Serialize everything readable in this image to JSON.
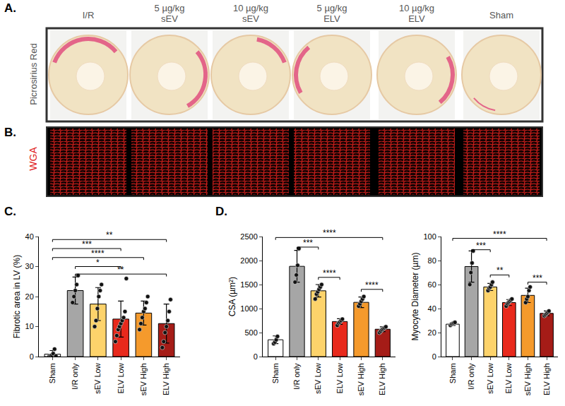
{
  "figure": {
    "A": {
      "label": "A.",
      "row_label": "Picrosirius Red",
      "columns": [
        [
          "I/R"
        ],
        [
          "5 µg/kg",
          "sEV"
        ],
        [
          "10 µg/kg",
          "sEV"
        ],
        [
          "5 µg/kg",
          "ELV"
        ],
        [
          "10 µg/kg",
          "ELV"
        ],
        [
          "Sham"
        ]
      ]
    },
    "B": {
      "label": "B.",
      "row_label": "WGA"
    },
    "C": {
      "label": "C."
    },
    "D": {
      "label": "D."
    }
  },
  "chart_data": [
    {
      "type": "bar",
      "ylabel": "Fibrotic area in LV (%)",
      "categories": [
        "Sham",
        "I/R only",
        "sEV Low",
        "ELV Low",
        "sEV High",
        "ELV High"
      ],
      "values": [
        0.8,
        22,
        17.5,
        12.5,
        14.5,
        11
      ],
      "errors": [
        1.2,
        4.5,
        5.5,
        6,
        4,
        6.5
      ],
      "points": [
        [
          0,
          0.3,
          0.5,
          1,
          2.5,
          0.2
        ],
        [
          18,
          20,
          22,
          24,
          27
        ],
        [
          10,
          12,
          16,
          20,
          22,
          24
        ],
        [
          5,
          7,
          9,
          10,
          11,
          12,
          13,
          15,
          26
        ],
        [
          9,
          11,
          13,
          15,
          16,
          18,
          20
        ],
        [
          3,
          5,
          8,
          10,
          12,
          15,
          19
        ]
      ],
      "colors": [
        "#ffffff",
        "#a6a6a6",
        "#fdd36b",
        "#e8291c",
        "#f59a2c",
        "#a51c17"
      ],
      "ylim": [
        0,
        40
      ],
      "yticks": [
        0,
        10,
        20,
        30,
        40
      ],
      "grid": false,
      "comparisons": [
        {
          "from": 0,
          "to": 5,
          "y": 39,
          "label": "**"
        },
        {
          "from": 0,
          "to": 3,
          "y": 36,
          "label": "***"
        },
        {
          "from": 0,
          "to": 4,
          "y": 33,
          "label": "****"
        },
        {
          "from": 1,
          "to": 3,
          "y": 30,
          "label": "*"
        },
        {
          "from": 1,
          "to": 5,
          "y": 27.5,
          "label": "**"
        }
      ]
    },
    {
      "type": "bar",
      "ylabel": "CSA (µm²)",
      "categories": [
        "Sham",
        "I/R only",
        "sEV Low",
        "ELV Low",
        "sEV High",
        "ELV High"
      ],
      "values": [
        350,
        1880,
        1370,
        730,
        1130,
        570
      ],
      "errors": [
        80,
        330,
        130,
        60,
        110,
        50
      ],
      "points": [
        [
          270,
          300,
          350,
          420
        ],
        [
          1550,
          1700,
          1900,
          2250
        ],
        [
          1200,
          1300,
          1350,
          1400,
          1450,
          1500
        ],
        [
          650,
          700,
          720,
          750,
          780
        ],
        [
          1050,
          1100,
          1150,
          1200,
          1250
        ],
        [
          500,
          530,
          560,
          580,
          600,
          620
        ]
      ],
      "colors": [
        "#ffffff",
        "#a6a6a6",
        "#fdd36b",
        "#e8291c",
        "#f59a2c",
        "#a51c17"
      ],
      "ylim": [
        0,
        2500
      ],
      "yticks": [
        0,
        500,
        1000,
        1500,
        2000,
        2500
      ],
      "grid": false,
      "comparisons": [
        {
          "from": 0,
          "to": 5,
          "y": 2480,
          "label": "****"
        },
        {
          "from": 1,
          "to": 2,
          "y": 2280,
          "label": "***"
        },
        {
          "from": 2,
          "to": 3,
          "y": 1650,
          "label": "****"
        },
        {
          "from": 4,
          "to": 5,
          "y": 1400,
          "label": "****"
        }
      ]
    },
    {
      "type": "bar",
      "ylabel": "Myocyte Diameter (µm)",
      "categories": [
        "Sham",
        "I/R only",
        "sEV Low",
        "ELV Low",
        "sEV High",
        "ELV High"
      ],
      "values": [
        27,
        75,
        58,
        45,
        51,
        36
      ],
      "errors": [
        1,
        13,
        3,
        2.5,
        6,
        2
      ],
      "points": [
        [
          26,
          27,
          27.5,
          28,
          28.5
        ],
        [
          60,
          70,
          78,
          88
        ],
        [
          55,
          57,
          58,
          60,
          62
        ],
        [
          42,
          44,
          45,
          46,
          47,
          48
        ],
        [
          45,
          48,
          50,
          55,
          58
        ],
        [
          34,
          35,
          36,
          37,
          38
        ]
      ],
      "colors": [
        "#ffffff",
        "#a6a6a6",
        "#fdd36b",
        "#e8291c",
        "#f59a2c",
        "#a51c17"
      ],
      "ylim": [
        0,
        100
      ],
      "yticks": [
        0,
        20,
        40,
        60,
        80,
        100
      ],
      "grid": false,
      "comparisons": [
        {
          "from": 0,
          "to": 5,
          "y": 98.5,
          "label": "****"
        },
        {
          "from": 1,
          "to": 2,
          "y": 89,
          "label": "***"
        },
        {
          "from": 2,
          "to": 3,
          "y": 68,
          "label": "**"
        },
        {
          "from": 4,
          "to": 5,
          "y": 62,
          "label": "***"
        }
      ]
    }
  ]
}
